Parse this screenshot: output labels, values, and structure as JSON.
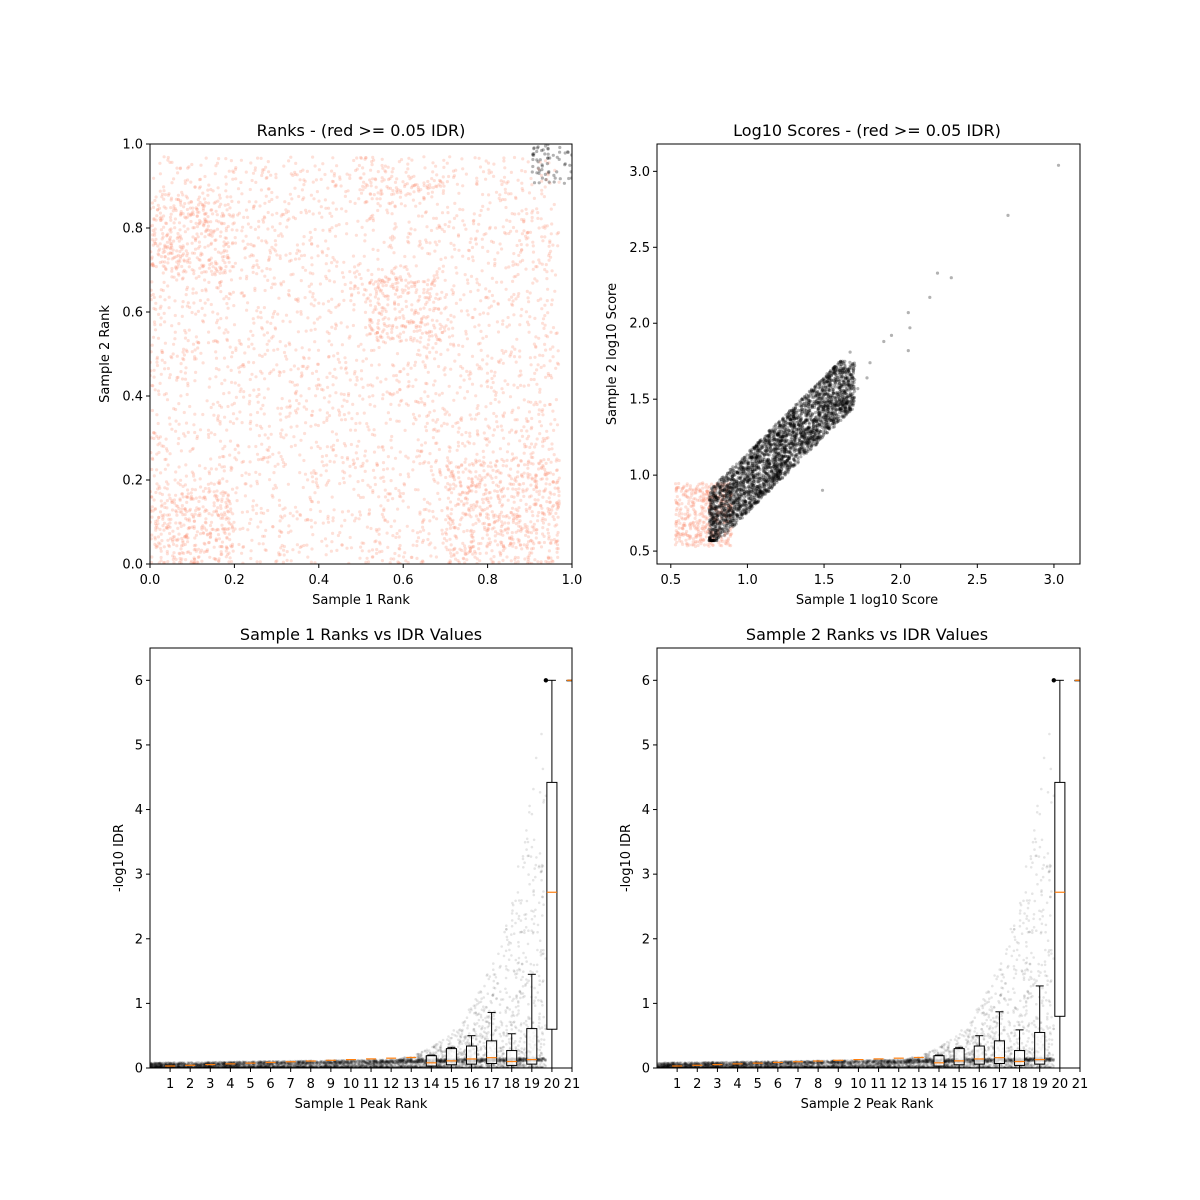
{
  "figure": {
    "background": "#ffffff"
  },
  "colors": {
    "rejected": "#fa8e72",
    "passed": "#000000",
    "median": "#ff7f0e",
    "box": "#000000"
  },
  "chart_data": [
    {
      "id": "ranks",
      "type": "scatter",
      "title": "Ranks - (red >= 0.05 IDR)",
      "xlabel": "Sample 1 Rank",
      "ylabel": "Sample 2 Rank",
      "xlim": [
        0.0,
        1.0
      ],
      "ylim": [
        0.0,
        1.0
      ],
      "xticks": [
        "0.0",
        "0.2",
        "0.4",
        "0.6",
        "0.8",
        "1.0"
      ],
      "yticks": [
        "0.0",
        "0.2",
        "0.4",
        "0.6",
        "0.8",
        "1.0"
      ],
      "xtick_values": [
        0.0,
        0.2,
        0.4,
        0.6,
        0.8,
        1.0
      ],
      "ytick_values": [
        0.0,
        0.2,
        0.4,
        0.6,
        0.8,
        1.0
      ],
      "grid": false,
      "series": [
        {
          "color": "rejected",
          "description_regions": [
            {
              "x": [
                0.0,
                0.97
              ],
              "y": [
                0.0,
                0.97
              ],
              "density": "medium"
            },
            {
              "x": [
                0.52,
                0.7
              ],
              "y": [
                0.53,
                0.68
              ],
              "density": "high"
            },
            {
              "x": [
                0.0,
                0.2
              ],
              "y": [
                0.69,
                0.88
              ],
              "density": "high"
            },
            {
              "x": [
                0.0,
                0.2
              ],
              "y": [
                0.0,
                0.2
              ],
              "density": "high"
            },
            {
              "x": [
                0.7,
                0.97
              ],
              "y": [
                0.0,
                0.25
              ],
              "density": "high"
            },
            {
              "x": [
                0.5,
                0.7
              ],
              "y": [
                0.88,
                0.92
              ],
              "density": "high"
            }
          ]
        },
        {
          "color": "passed",
          "description_regions": [
            {
              "x": [
                0.905,
                1.0
              ],
              "y": [
                0.905,
                1.0
              ],
              "density": "high"
            }
          ]
        }
      ]
    },
    {
      "id": "scores",
      "type": "scatter",
      "title": "Log10 Scores - (red >= 0.05 IDR)",
      "xlabel": "Sample 1 log10 Score",
      "ylabel": "Sample 2 log10 Score",
      "xlim": [
        0.41,
        3.17
      ],
      "ylim": [
        0.415,
        3.18
      ],
      "xticks": [
        "0.5",
        "1.0",
        "1.5",
        "2.0",
        "2.5",
        "3.0"
      ],
      "yticks": [
        "0.5",
        "1.0",
        "1.5",
        "2.0",
        "2.5",
        "3.0"
      ],
      "xtick_values": [
        0.5,
        1.0,
        1.5,
        2.0,
        2.5,
        3.0
      ],
      "ytick_values": [
        0.5,
        1.0,
        1.5,
        2.0,
        2.5,
        3.0
      ],
      "grid": false,
      "series": [
        {
          "color": "rejected",
          "description_regions": [
            {
              "x": [
                0.53,
                0.9
              ],
              "y": [
                0.53,
                0.95
              ],
              "density": "high"
            }
          ]
        },
        {
          "color": "passed",
          "description_regions": [
            {
              "x": [
                0.75,
                1.7
              ],
              "y": [
                0.57,
                1.75
              ],
              "density": "high"
            }
          ],
          "outliers": [
            [
              3.03,
              3.04
            ],
            [
              2.7,
              2.71
            ],
            [
              2.24,
              2.33
            ],
            [
              2.33,
              2.3
            ],
            [
              2.19,
              2.17
            ],
            [
              2.05,
              2.07
            ],
            [
              2.06,
              1.97
            ],
            [
              2.05,
              1.82
            ],
            [
              1.94,
              1.92
            ],
            [
              1.89,
              1.88
            ],
            [
              1.8,
              1.74
            ],
            [
              1.67,
              1.81
            ],
            [
              1.78,
              1.64
            ],
            [
              1.72,
              1.57
            ],
            [
              1.58,
              1.71
            ],
            [
              1.49,
              0.9
            ],
            [
              1.62,
              1.46
            ]
          ]
        }
      ]
    },
    {
      "id": "s1_idr",
      "type": "box",
      "title": "Sample 1 Ranks vs IDR Values",
      "xlabel": "Sample 1 Peak Rank",
      "ylabel": "-log10 IDR",
      "xlim": [
        0.0,
        21.0
      ],
      "ylim": [
        0.0,
        6.5
      ],
      "xticks": [
        "1",
        "2",
        "3",
        "4",
        "5",
        "6",
        "7",
        "8",
        "9",
        "10",
        "11",
        "12",
        "13",
        "14",
        "15",
        "16",
        "17",
        "18",
        "19",
        "20",
        "21"
      ],
      "xtick_values": [
        1,
        2,
        3,
        4,
        5,
        6,
        7,
        8,
        9,
        10,
        11,
        12,
        13,
        14,
        15,
        16,
        17,
        18,
        19,
        20,
        21
      ],
      "yticks": [
        "0",
        "1",
        "2",
        "3",
        "4",
        "5",
        "6"
      ],
      "ytick_values": [
        0,
        1,
        2,
        3,
        4,
        5,
        6
      ],
      "grid": false,
      "curve": {
        "start": 0.05,
        "upper_end_x": 19.7,
        "upper_end_y": 6.0
      },
      "boxes": [
        {
          "pos": 14.0,
          "q1": 0.03,
          "median": 0.08,
          "q3": 0.19,
          "whisker_low": 0.0,
          "whisker_high": 0.2
        },
        {
          "pos": 15.0,
          "q1": 0.05,
          "median": 0.11,
          "q3": 0.3,
          "whisker_low": 0.0,
          "whisker_high": 0.32
        },
        {
          "pos": 16.0,
          "q1": 0.06,
          "median": 0.14,
          "q3": 0.34,
          "whisker_low": 0.0,
          "whisker_high": 0.5
        },
        {
          "pos": 17.0,
          "q1": 0.07,
          "median": 0.16,
          "q3": 0.42,
          "whisker_low": 0.0,
          "whisker_high": 0.86
        },
        {
          "pos": 18.0,
          "q1": 0.04,
          "median": 0.1,
          "q3": 0.27,
          "whisker_low": 0.0,
          "whisker_high": 0.53
        },
        {
          "pos": 19.0,
          "q1": 0.06,
          "median": 0.13,
          "q3": 0.61,
          "whisker_low": 0.0,
          "whisker_high": 1.45
        },
        {
          "pos": 20.0,
          "q1": 0.6,
          "median": 2.72,
          "q3": 4.42,
          "whisker_low": 0.0,
          "whisker_high": 6.0
        },
        {
          "pos": 21.0,
          "q1": 6.0,
          "median": 6.0,
          "q3": 6.0,
          "whisker_low": 6.0,
          "whisker_high": 6.0
        }
      ]
    },
    {
      "id": "s2_idr",
      "type": "box",
      "title": "Sample 2 Ranks vs IDR Values",
      "xlabel": "Sample 2 Peak Rank",
      "ylabel": "-log10 IDR",
      "xlim": [
        0.0,
        21.0
      ],
      "ylim": [
        0.0,
        6.5
      ],
      "xticks": [
        "1",
        "2",
        "3",
        "4",
        "5",
        "6",
        "7",
        "8",
        "9",
        "10",
        "11",
        "12",
        "13",
        "14",
        "15",
        "16",
        "17",
        "18",
        "19",
        "20",
        "21"
      ],
      "xtick_values": [
        1,
        2,
        3,
        4,
        5,
        6,
        7,
        8,
        9,
        10,
        11,
        12,
        13,
        14,
        15,
        16,
        17,
        18,
        19,
        20,
        21
      ],
      "yticks": [
        "0",
        "1",
        "2",
        "3",
        "4",
        "5",
        "6"
      ],
      "ytick_values": [
        0,
        1,
        2,
        3,
        4,
        5,
        6
      ],
      "grid": false,
      "curve": {
        "start": 0.05,
        "upper_end_x": 19.7,
        "upper_end_y": 6.0
      },
      "boxes": [
        {
          "pos": 14.0,
          "q1": 0.03,
          "median": 0.08,
          "q3": 0.19,
          "whisker_low": 0.0,
          "whisker_high": 0.2
        },
        {
          "pos": 15.0,
          "q1": 0.05,
          "median": 0.11,
          "q3": 0.3,
          "whisker_low": 0.0,
          "whisker_high": 0.32
        },
        {
          "pos": 16.0,
          "q1": 0.06,
          "median": 0.14,
          "q3": 0.34,
          "whisker_low": 0.0,
          "whisker_high": 0.5
        },
        {
          "pos": 17.0,
          "q1": 0.07,
          "median": 0.16,
          "q3": 0.42,
          "whisker_low": 0.0,
          "whisker_high": 0.87
        },
        {
          "pos": 18.0,
          "q1": 0.04,
          "median": 0.1,
          "q3": 0.27,
          "whisker_low": 0.0,
          "whisker_high": 0.59
        },
        {
          "pos": 19.0,
          "q1": 0.06,
          "median": 0.13,
          "q3": 0.55,
          "whisker_low": 0.0,
          "whisker_high": 1.27
        },
        {
          "pos": 20.0,
          "q1": 0.8,
          "median": 2.72,
          "q3": 4.42,
          "whisker_low": 0.0,
          "whisker_high": 6.0
        },
        {
          "pos": 21.0,
          "q1": 6.0,
          "median": 6.0,
          "q3": 6.0,
          "whisker_low": 6.0,
          "whisker_high": 6.0
        }
      ]
    }
  ]
}
